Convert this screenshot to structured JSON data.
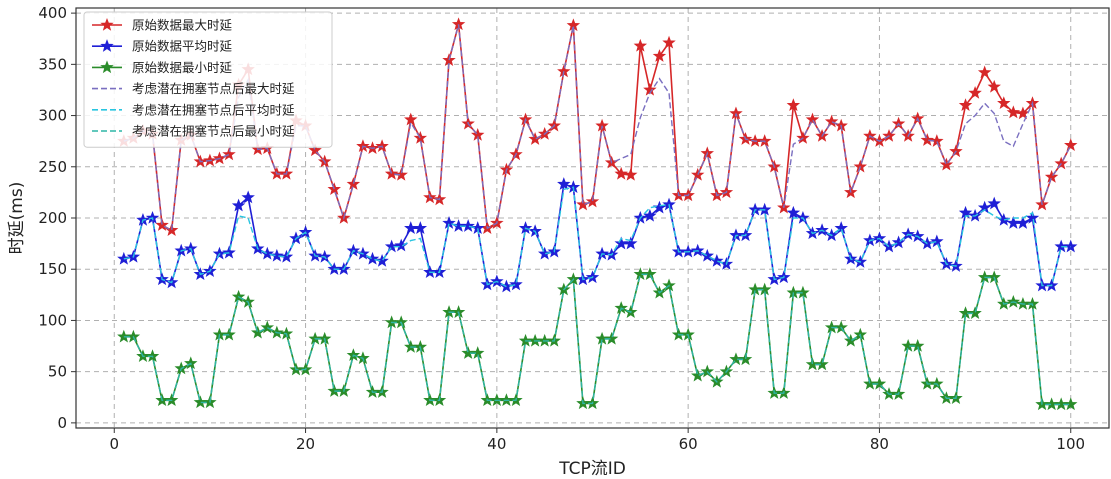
{
  "chart_data": {
    "type": "line",
    "xlabel": "TCP流ID",
    "ylabel": "时延(ms)",
    "xlim": [
      -4,
      104
    ],
    "ylim": [
      -5,
      405
    ],
    "xticks": [
      0,
      20,
      40,
      60,
      80,
      100
    ],
    "yticks": [
      0,
      50,
      100,
      150,
      200,
      250,
      300,
      350,
      400
    ],
    "grid": true,
    "legend_position": "top-left",
    "x": [
      1,
      2,
      3,
      4,
      5,
      6,
      7,
      8,
      9,
      10,
      11,
      12,
      13,
      14,
      15,
      16,
      17,
      18,
      19,
      20,
      21,
      22,
      23,
      24,
      25,
      26,
      27,
      28,
      29,
      30,
      31,
      32,
      33,
      34,
      35,
      36,
      37,
      38,
      39,
      40,
      41,
      42,
      43,
      44,
      45,
      46,
      47,
      48,
      49,
      50,
      51,
      52,
      53,
      54,
      55,
      56,
      57,
      58,
      59,
      60,
      61,
      62,
      63,
      64,
      65,
      66,
      67,
      68,
      69,
      70,
      71,
      72,
      73,
      74,
      75,
      76,
      77,
      78,
      79,
      80,
      81,
      82,
      83,
      84,
      85,
      86,
      87,
      88,
      89,
      90,
      91,
      92,
      93,
      94,
      95,
      96,
      97,
      98,
      99,
      100
    ],
    "series": [
      {
        "name": "原始数据最大时延",
        "color": "#d62728",
        "style": "solid",
        "marker": "star",
        "values": [
          275,
          278,
          285,
          282,
          193,
          188,
          276,
          281,
          255,
          256,
          258,
          262,
          330,
          345,
          267,
          268,
          243,
          243,
          295,
          290,
          266,
          255,
          228,
          200,
          233,
          270,
          268,
          270,
          243,
          242,
          296,
          278,
          220,
          218,
          354,
          389,
          292,
          281,
          190,
          195,
          247,
          262,
          296,
          277,
          282,
          290,
          343,
          388,
          213,
          216,
          290,
          254,
          243,
          242,
          368,
          325,
          358,
          371,
          222,
          222,
          242,
          263,
          222,
          225,
          302,
          277,
          275,
          275,
          250,
          210,
          310,
          278,
          296,
          280,
          294,
          290,
          225,
          250,
          280,
          275,
          280,
          292,
          280,
          297,
          276,
          275,
          252,
          265,
          310,
          322,
          342,
          328,
          312,
          303,
          302,
          312,
          213,
          240,
          253,
          271
        ]
      },
      {
        "name": "原始数据平均时延",
        "color": "#1f1fd6",
        "style": "solid",
        "marker": "star",
        "values": [
          160,
          162,
          198,
          200,
          140,
          137,
          168,
          170,
          145,
          148,
          165,
          166,
          212,
          220,
          170,
          165,
          163,
          162,
          180,
          186,
          163,
          162,
          150,
          150,
          168,
          165,
          160,
          158,
          172,
          173,
          190,
          190,
          147,
          147,
          195,
          192,
          192,
          190,
          135,
          138,
          133,
          135,
          190,
          187,
          165,
          167,
          233,
          230,
          140,
          142,
          165,
          164,
          175,
          175,
          200,
          202,
          210,
          213,
          167,
          167,
          168,
          163,
          158,
          155,
          183,
          183,
          208,
          208,
          140,
          142,
          205,
          200,
          185,
          188,
          183,
          190,
          160,
          157,
          178,
          180,
          172,
          176,
          184,
          182,
          175,
          177,
          155,
          153,
          205,
          202,
          210,
          214,
          198,
          195,
          195,
          200,
          134,
          134,
          172,
          172
        ]
      },
      {
        "name": "原始数据最小时延",
        "color": "#2a8c2a",
        "style": "solid",
        "marker": "star",
        "values": [
          84,
          84,
          65,
          65,
          22,
          22,
          53,
          58,
          20,
          20,
          86,
          86,
          123,
          118,
          88,
          93,
          88,
          87,
          52,
          52,
          82,
          82,
          31,
          31,
          66,
          63,
          30,
          30,
          98,
          98,
          74,
          74,
          22,
          22,
          108,
          108,
          68,
          68,
          22,
          22,
          22,
          22,
          80,
          80,
          80,
          80,
          130,
          140,
          19,
          19,
          82,
          82,
          112,
          108,
          145,
          145,
          127,
          134,
          86,
          86,
          46,
          50,
          40,
          50,
          62,
          62,
          130,
          130,
          29,
          29,
          127,
          127,
          57,
          57,
          93,
          93,
          80,
          86,
          38,
          38,
          28,
          28,
          75,
          75,
          38,
          38,
          24,
          24,
          107,
          107,
          142,
          142,
          116,
          118,
          116,
          116,
          18,
          18,
          18,
          18
        ]
      },
      {
        "name": "考虑潜在拥塞节点后最大时延",
        "color": "#7a6fc0",
        "style": "dashed",
        "values": [
          275,
          278,
          285,
          282,
          193,
          188,
          276,
          281,
          255,
          256,
          258,
          262,
          318,
          335,
          267,
          268,
          243,
          243,
          290,
          290,
          266,
          255,
          228,
          200,
          233,
          270,
          268,
          270,
          243,
          242,
          293,
          278,
          220,
          218,
          354,
          389,
          292,
          281,
          190,
          195,
          247,
          262,
          296,
          277,
          282,
          290,
          343,
          388,
          213,
          216,
          290,
          254,
          258,
          262,
          298,
          322,
          336,
          322,
          222,
          222,
          242,
          263,
          222,
          225,
          302,
          277,
          275,
          275,
          250,
          210,
          272,
          278,
          296,
          280,
          294,
          290,
          225,
          250,
          280,
          275,
          280,
          292,
          280,
          297,
          276,
          275,
          252,
          265,
          292,
          300,
          312,
          302,
          275,
          270,
          292,
          312,
          213,
          240,
          253,
          271
        ]
      },
      {
        "name": "考虑潜在拥塞节点后平均时延",
        "color": "#29c5e0",
        "style": "dashed",
        "values": [
          160,
          162,
          198,
          200,
          140,
          137,
          168,
          170,
          145,
          148,
          165,
          166,
          202,
          200,
          170,
          165,
          163,
          162,
          180,
          186,
          163,
          162,
          150,
          150,
          168,
          165,
          160,
          158,
          172,
          172,
          178,
          180,
          147,
          147,
          195,
          192,
          192,
          190,
          135,
          138,
          133,
          135,
          190,
          187,
          165,
          167,
          228,
          230,
          140,
          142,
          165,
          164,
          180,
          178,
          200,
          210,
          212,
          213,
          167,
          167,
          168,
          163,
          158,
          155,
          183,
          183,
          208,
          208,
          140,
          142,
          200,
          200,
          185,
          188,
          183,
          190,
          160,
          157,
          178,
          180,
          172,
          176,
          184,
          182,
          175,
          177,
          155,
          153,
          202,
          202,
          208,
          202,
          198,
          200,
          200,
          205,
          134,
          134,
          172,
          172
        ]
      },
      {
        "name": "考虑潜在拥塞节点后最小时延",
        "color": "#2fb5a5",
        "style": "dashed",
        "values": [
          84,
          84,
          65,
          65,
          22,
          22,
          53,
          58,
          20,
          20,
          86,
          86,
          123,
          118,
          88,
          93,
          88,
          87,
          52,
          52,
          82,
          82,
          31,
          31,
          66,
          63,
          30,
          30,
          98,
          98,
          74,
          74,
          22,
          22,
          108,
          108,
          68,
          68,
          22,
          22,
          22,
          22,
          80,
          80,
          80,
          80,
          130,
          140,
          19,
          19,
          82,
          82,
          112,
          108,
          145,
          145,
          127,
          134,
          86,
          86,
          46,
          50,
          40,
          50,
          62,
          62,
          130,
          130,
          29,
          29,
          127,
          127,
          57,
          57,
          93,
          93,
          80,
          86,
          38,
          38,
          28,
          28,
          75,
          75,
          38,
          38,
          24,
          24,
          107,
          107,
          142,
          142,
          116,
          118,
          116,
          116,
          18,
          18,
          18,
          18
        ]
      }
    ]
  }
}
